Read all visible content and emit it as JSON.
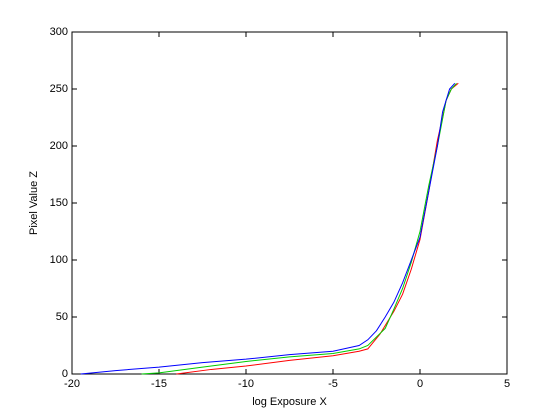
{
  "chart_data": {
    "type": "line",
    "xlabel": "log Exposure X",
    "ylabel": "Pixel Value Z",
    "xlim": [
      -20,
      5
    ],
    "xticks": [
      -20,
      -15,
      -10,
      -5,
      0,
      5
    ],
    "ylim": [
      0,
      300
    ],
    "yticks": [
      0,
      50,
      100,
      150,
      200,
      250,
      300
    ],
    "grid": false,
    "series": [
      {
        "color": "#ff0000",
        "x": [
          -14,
          -12,
          -10,
          -7.5,
          -5,
          -3.5,
          -3,
          -2.3,
          -1.5,
          -1,
          -0.5,
          0,
          0.5,
          1,
          1.3,
          1.5,
          1.8,
          2.2
        ],
        "values": [
          0,
          4,
          7,
          12,
          16,
          20,
          22,
          35,
          55,
          70,
          92,
          118,
          160,
          205,
          225,
          240,
          250,
          255
        ]
      },
      {
        "color": "#00cc00",
        "x": [
          -16,
          -15,
          -12.5,
          -10,
          -7.5,
          -5,
          -3.5,
          -3,
          -2,
          -1.5,
          -1,
          -0.5,
          0,
          0.5,
          1,
          1.5,
          1.8,
          2.1
        ],
        "values": [
          0,
          1,
          6,
          11,
          15,
          18,
          22,
          25,
          40,
          57,
          75,
          98,
          125,
          165,
          200,
          240,
          250,
          255
        ]
      },
      {
        "color": "#0000ff",
        "x": [
          -19.5,
          -17.5,
          -15,
          -12.5,
          -10,
          -7.5,
          -5,
          -3.5,
          -3,
          -2.5,
          -2,
          -1.5,
          -1,
          -0.5,
          0,
          0.5,
          1,
          1.3,
          1.7,
          2
        ],
        "values": [
          0,
          3,
          6,
          10,
          13,
          17,
          20,
          25,
          30,
          38,
          50,
          63,
          80,
          100,
          120,
          160,
          200,
          230,
          250,
          255
        ]
      }
    ]
  }
}
